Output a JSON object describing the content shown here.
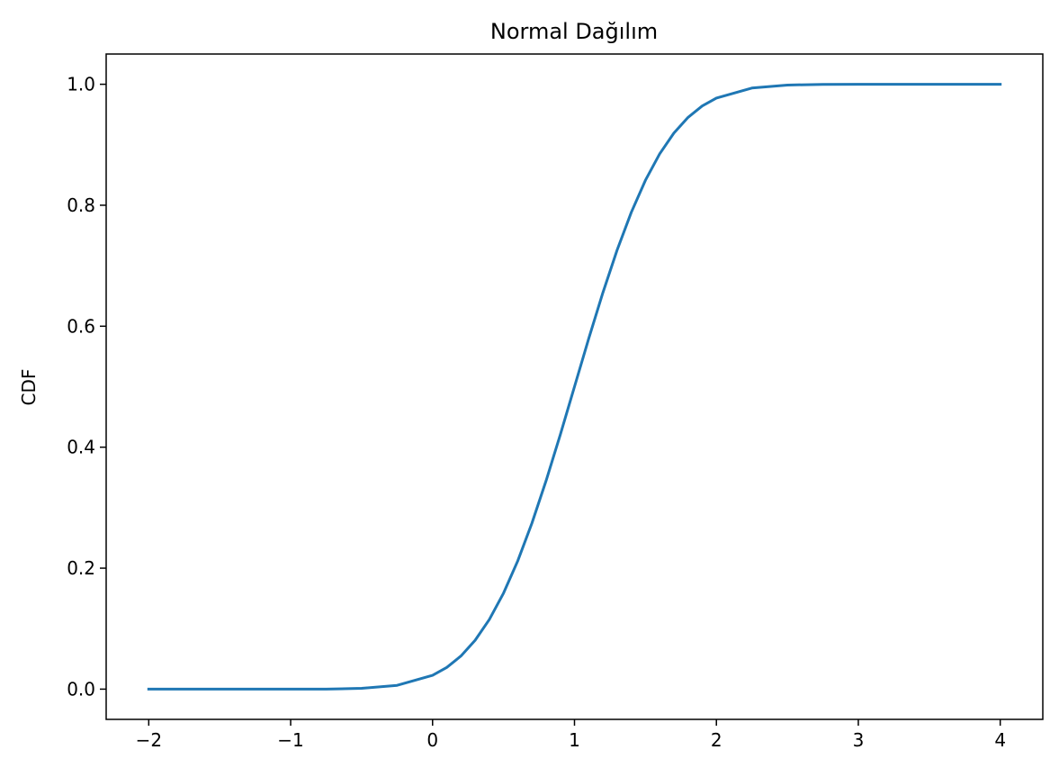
{
  "chart_data": {
    "type": "line",
    "title": "Normal Dağılım",
    "xlabel": "",
    "ylabel": "CDF",
    "xlim": [
      -2.3,
      4.3
    ],
    "ylim": [
      -0.05,
      1.05
    ],
    "x_ticks": [
      -2,
      -1,
      0,
      1,
      2,
      3,
      4
    ],
    "x_tick_labels": [
      "−2",
      "−1",
      "0",
      "1",
      "2",
      "3",
      "4"
    ],
    "y_ticks": [
      0.0,
      0.2,
      0.4,
      0.6,
      0.8,
      1.0
    ],
    "y_tick_labels": [
      "0.0",
      "0.2",
      "0.4",
      "0.6",
      "0.8",
      "1.0"
    ],
    "grid": false,
    "series": [
      {
        "color": "#1f77b4",
        "x": [
          -2.0,
          -1.5,
          -1.0,
          -0.75,
          -0.5,
          -0.25,
          0.0,
          0.1,
          0.2,
          0.3,
          0.4,
          0.5,
          0.6,
          0.7,
          0.8,
          0.9,
          1.0,
          1.1,
          1.2,
          1.3,
          1.4,
          1.5,
          1.6,
          1.7,
          1.8,
          1.9,
          2.0,
          2.25,
          2.5,
          2.75,
          3.0,
          3.5,
          4.0
        ],
        "y": [
          0.0,
          0.0,
          0.0,
          0.0,
          0.0013,
          0.0062,
          0.0228,
          0.0359,
          0.0548,
          0.0808,
          0.1151,
          0.1587,
          0.2119,
          0.2743,
          0.3446,
          0.4207,
          0.5,
          0.5793,
          0.6554,
          0.7257,
          0.7881,
          0.8413,
          0.8849,
          0.9192,
          0.9452,
          0.9641,
          0.9772,
          0.9938,
          0.9987,
          0.9998,
          1.0,
          1.0,
          1.0
        ]
      }
    ]
  }
}
